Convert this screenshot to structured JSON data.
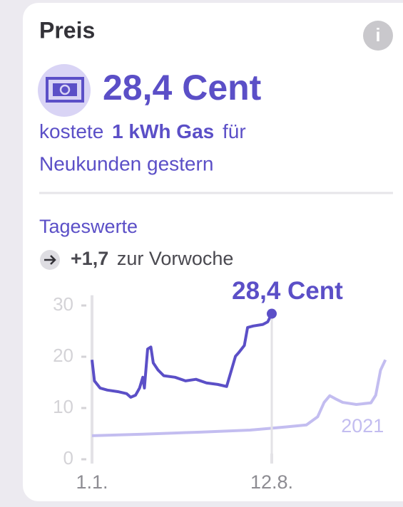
{
  "card": {
    "title": "Preis",
    "info_icon": "i",
    "price": "28,4 Cent",
    "description": [
      "kostete",
      "1 kWh Gas",
      "für",
      "Neukunden gestern"
    ],
    "section": "Tageswerte",
    "change": "+1,7",
    "change_text": "zur Vorwoche"
  },
  "chart_data": {
    "type": "line",
    "annotation": "28,4 Cent",
    "xlim": [
      0,
      365
    ],
    "xticks": [
      {
        "value": 0,
        "label": "1.1."
      },
      {
        "value": 223,
        "label": "12.8."
      }
    ],
    "ylim": [
      0,
      32
    ],
    "yticks": [
      0,
      10,
      20,
      30
    ],
    "series": [
      {
        "color": "#5b4fc7",
        "x": [
          0,
          3,
          10,
          19,
          32,
          43,
          48,
          54,
          59,
          63,
          65,
          69,
          73,
          76,
          82,
          89,
          103,
          116,
          129,
          142,
          156,
          167,
          173,
          178,
          182,
          189,
          193,
          200,
          212,
          218,
          223
        ],
        "values": [
          19.4,
          15.3,
          13.9,
          13.5,
          13.2,
          12.8,
          12.1,
          12.5,
          13.9,
          16,
          13.9,
          21.5,
          21.9,
          18.8,
          17.4,
          16.3,
          16,
          15.3,
          15.6,
          14.9,
          14.6,
          14.2,
          17.4,
          20.1,
          20.8,
          22.2,
          25.7,
          26,
          26.3,
          26.8,
          28.4
        ]
      },
      {
        "name": "2021",
        "color": "#c3bdf0",
        "x": [
          0,
          63,
          134,
          196,
          240,
          266,
          280,
          288,
          295,
          302,
          311,
          328,
          346,
          352,
          358,
          364
        ],
        "values": [
          4.6,
          4.9,
          5.3,
          5.7,
          6.3,
          6.7,
          8.3,
          11.1,
          12.4,
          11.8,
          11.1,
          10.7,
          11,
          12.5,
          17.4,
          19.4
        ]
      }
    ]
  }
}
